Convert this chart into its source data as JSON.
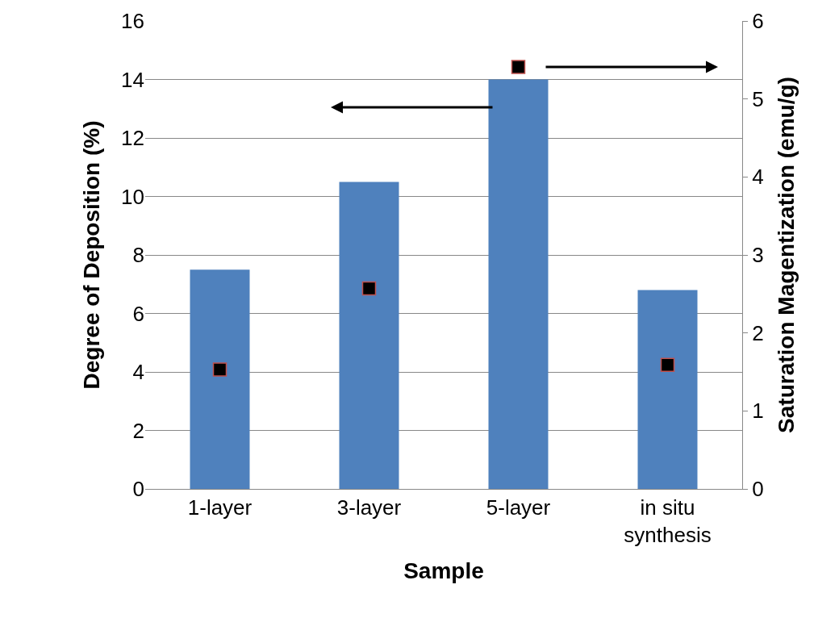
{
  "chart_data": {
    "type": "bar",
    "xlabel": "Sample",
    "ylabel": "Degree of Deposition (%)",
    "y2label": "Saturation Magentization (emu/g)",
    "categories": [
      "1-layer",
      "3-layer",
      "5-layer",
      "in situ synthesis"
    ],
    "series": [
      {
        "type": "bar",
        "color": "#4f81bd",
        "values": [
          7.5,
          10.5,
          14.0,
          6.8
        ]
      },
      {
        "type": "scatter",
        "axis": "y2",
        "color": "#000000",
        "marker": "square",
        "values": [
          1.53,
          2.57,
          5.41,
          1.59
        ]
      }
    ],
    "ylim": [
      0,
      16
    ],
    "yticks": [
      0,
      2,
      4,
      6,
      8,
      10,
      12,
      14,
      16
    ],
    "y2lim": [
      0,
      6
    ],
    "y2ticks": [
      0,
      1,
      2,
      3,
      4,
      5,
      6
    ],
    "grid": "y",
    "legend": false
  }
}
